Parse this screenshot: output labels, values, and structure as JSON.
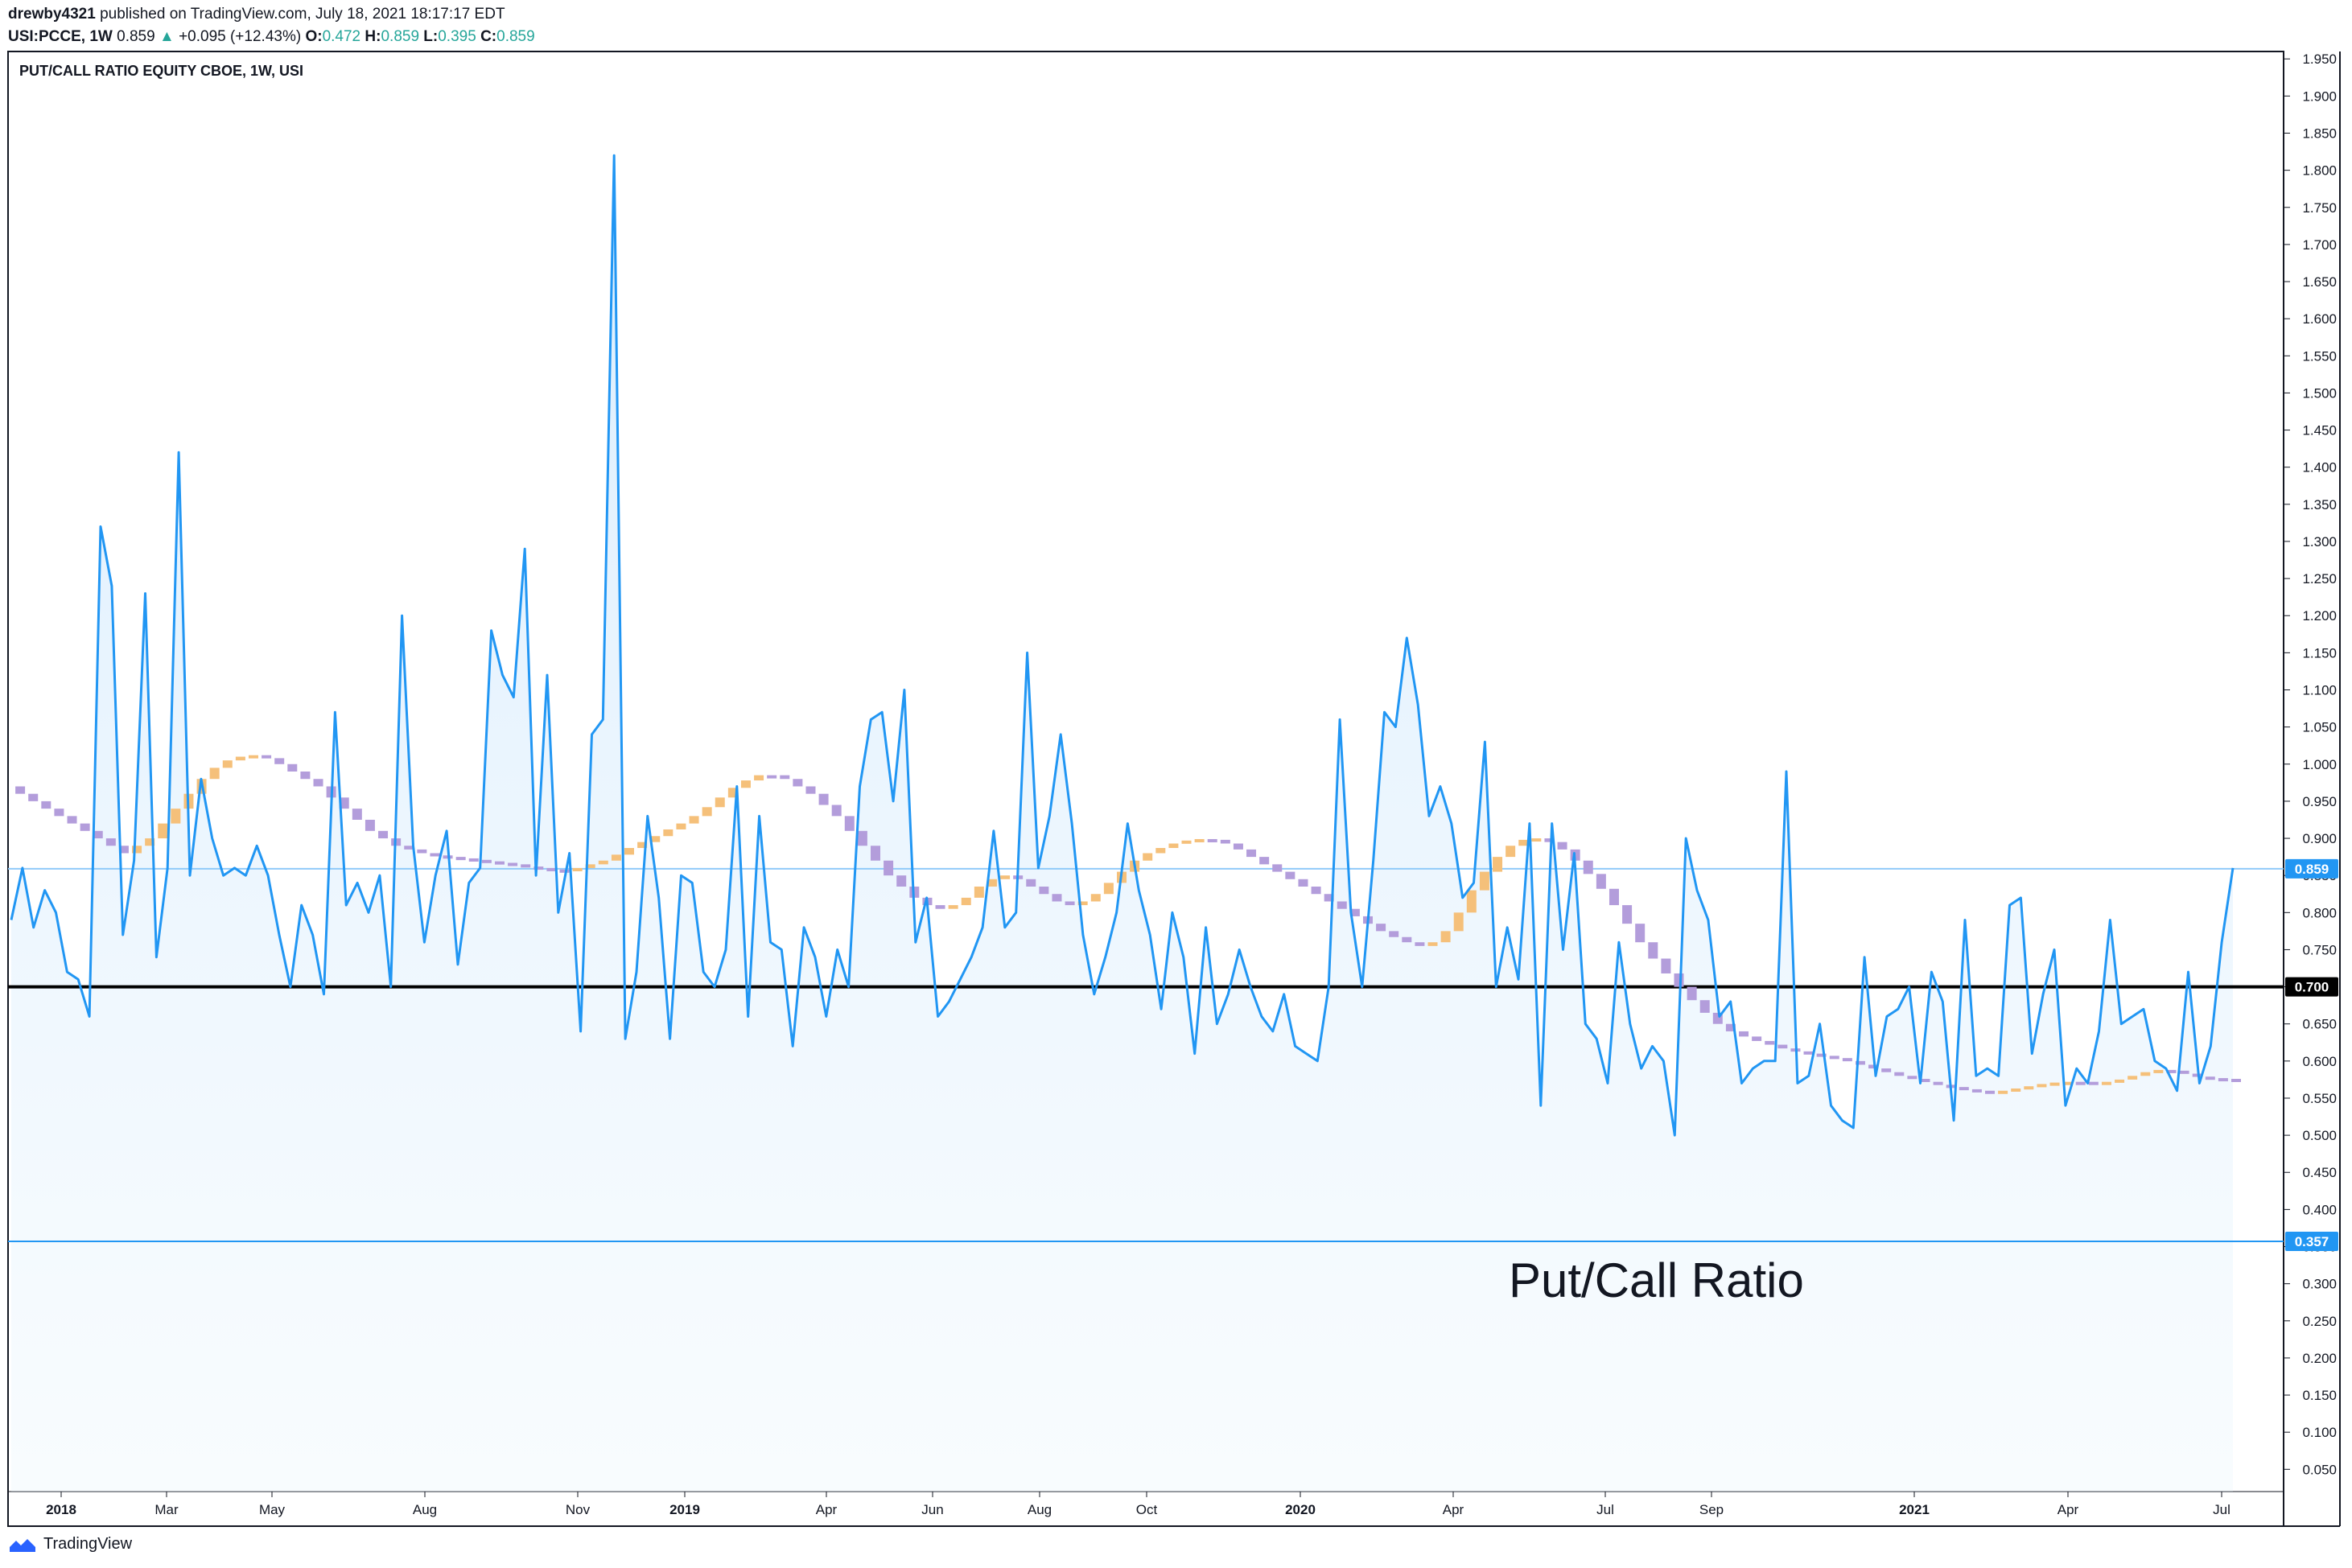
{
  "header": {
    "author": "drewby4321",
    "published": "published on TradingView.com, July 18, 2021 18:17:17 EDT",
    "symbol": "USI:PCCE, 1W",
    "last": "0.859",
    "change": "+0.095 (+12.43%)",
    "o_label": "O:",
    "o_val": "0.472",
    "h_label": "H:",
    "h_val": "0.859",
    "l_label": "L:",
    "l_val": "0.395",
    "c_label": "C:",
    "c_val": "0.859"
  },
  "footer": {
    "brand": "TradingView",
    "icon": "tradingview-logo-icon"
  },
  "colors": {
    "line": "#2196f3",
    "fill": "#e3f2fd",
    "ma_up": "#f5c07a",
    "ma_down": "#b39ddb",
    "hline": "#000000",
    "level_357": "#2196f3"
  },
  "chart_data": {
    "type": "line",
    "title": "PUT/CALL RATIO EQUITY CBOE, 1W, USI",
    "annotation": "Put/Call Ratio",
    "ylim": [
      0.02,
      1.96
    ],
    "yticks": [
      "1.950",
      "1.900",
      "1.850",
      "1.800",
      "1.750",
      "1.700",
      "1.650",
      "1.600",
      "1.550",
      "1.500",
      "1.450",
      "1.400",
      "1.350",
      "1.300",
      "1.250",
      "1.200",
      "1.150",
      "1.100",
      "1.050",
      "1.000",
      "0.950",
      "0.900",
      "0.850",
      "0.800",
      "0.750",
      "0.700",
      "0.650",
      "0.600",
      "0.550",
      "0.500",
      "0.450",
      "0.400",
      "0.350",
      "0.300",
      "0.250",
      "0.200",
      "0.150",
      "0.100",
      "0.050"
    ],
    "xlabels": [
      "2018",
      "Mar",
      "May",
      "Aug",
      "Nov",
      "2019",
      "Apr",
      "Jun",
      "Aug",
      "Oct",
      "2020",
      "Apr",
      "Jul",
      "Sep",
      "2021",
      "Apr",
      "Jul"
    ],
    "bold_xlabels": [
      "2018",
      "2019",
      "2020",
      "2021"
    ],
    "price_labels": [
      {
        "value": 0.859,
        "text": "0.859",
        "style": "current"
      },
      {
        "value": 0.7,
        "text": "0.700",
        "style": "black"
      },
      {
        "value": 0.357,
        "text": "0.357",
        "style": "blue"
      }
    ],
    "horizontal_lines": [
      {
        "value": 0.7,
        "color": "#000000"
      },
      {
        "value": 0.357,
        "color": "#2196f3"
      },
      {
        "value": 0.859,
        "color": "#90caf9"
      }
    ],
    "series": [
      {
        "values": [
          0.79,
          0.86,
          0.78,
          0.83,
          0.8,
          0.72,
          0.71,
          0.66,
          1.32,
          1.24,
          0.77,
          0.87,
          1.23,
          0.74,
          0.86,
          1.42,
          0.85,
          0.98,
          0.9,
          0.85,
          0.86,
          0.85,
          0.89,
          0.85,
          0.77,
          0.7,
          0.81,
          0.77,
          0.69,
          1.07,
          0.81,
          0.84,
          0.8,
          0.85,
          0.7,
          1.2,
          0.89,
          0.76,
          0.85,
          0.91,
          0.73,
          0.84,
          0.86,
          1.18,
          1.12,
          1.09,
          1.29,
          0.85,
          1.12,
          0.8,
          0.88,
          0.64,
          1.04,
          1.06,
          1.82,
          0.63,
          0.72,
          0.93,
          0.82,
          0.63,
          0.85,
          0.84,
          0.72,
          0.7,
          0.75,
          0.97,
          0.66,
          0.93,
          0.76,
          0.75,
          0.62,
          0.78,
          0.74,
          0.66,
          0.75,
          0.7,
          0.97,
          1.06,
          1.07,
          0.95,
          1.1,
          0.76,
          0.82,
          0.66,
          0.68,
          0.71,
          0.74,
          0.78,
          0.91,
          0.78,
          0.8,
          1.15,
          0.86,
          0.93,
          1.04,
          0.92,
          0.77,
          0.69,
          0.74,
          0.8,
          0.92,
          0.83,
          0.77,
          0.67,
          0.8,
          0.74,
          0.61,
          0.78,
          0.65,
          0.69,
          0.75,
          0.7,
          0.66,
          0.64,
          0.69,
          0.62,
          0.61,
          0.6,
          0.7,
          1.06,
          0.8,
          0.7,
          0.87,
          1.07,
          1.05,
          1.17,
          1.08,
          0.93,
          0.97,
          0.92,
          0.82,
          0.84,
          1.03,
          0.7,
          0.78,
          0.71,
          0.92,
          0.54,
          0.92,
          0.75,
          0.88,
          0.65,
          0.63,
          0.57,
          0.76,
          0.65,
          0.59,
          0.62,
          0.6,
          0.5,
          0.9,
          0.83,
          0.79,
          0.66,
          0.68,
          0.57,
          0.59,
          0.6,
          0.6,
          0.99,
          0.57,
          0.58,
          0.65,
          0.54,
          0.52,
          0.51,
          0.74,
          0.58,
          0.66,
          0.67,
          0.7,
          0.57,
          0.72,
          0.68,
          0.52,
          0.79,
          0.58,
          0.59,
          0.58,
          0.81,
          0.82,
          0.61,
          0.69,
          0.75,
          0.54,
          0.59,
          0.57,
          0.64,
          0.79,
          0.65,
          0.66,
          0.67,
          0.6,
          0.59,
          0.56,
          0.72,
          0.57,
          0.62,
          0.76,
          0.86
        ]
      },
      {
        "name": "",
        "values": [
          0.97,
          0.96,
          0.95,
          0.94,
          0.93,
          0.92,
          0.91,
          0.9,
          0.89,
          0.88,
          0.89,
          0.9,
          0.92,
          0.94,
          0.96,
          0.98,
          0.995,
          1.005,
          1.01,
          1.012,
          1.008,
          1.0,
          0.99,
          0.98,
          0.97,
          0.955,
          0.94,
          0.925,
          0.91,
          0.9,
          0.89,
          0.885,
          0.88,
          0.877,
          0.875,
          0.873,
          0.871,
          0.869,
          0.867,
          0.865,
          0.862,
          0.86,
          0.858,
          0.858,
          0.86,
          0.865,
          0.87,
          0.878,
          0.887,
          0.895,
          0.903,
          0.912,
          0.92,
          0.93,
          0.942,
          0.955,
          0.968,
          0.978,
          0.985,
          0.985,
          0.98,
          0.97,
          0.96,
          0.945,
          0.93,
          0.91,
          0.89,
          0.87,
          0.85,
          0.835,
          0.82,
          0.81,
          0.805,
          0.81,
          0.82,
          0.835,
          0.845,
          0.85,
          0.845,
          0.835,
          0.825,
          0.815,
          0.81,
          0.815,
          0.825,
          0.84,
          0.855,
          0.87,
          0.88,
          0.887,
          0.893,
          0.897,
          0.899,
          0.898,
          0.893,
          0.885,
          0.875,
          0.865,
          0.855,
          0.845,
          0.835,
          0.825,
          0.815,
          0.805,
          0.795,
          0.785,
          0.775,
          0.767,
          0.76,
          0.755,
          0.76,
          0.775,
          0.8,
          0.83,
          0.855,
          0.875,
          0.89,
          0.898,
          0.9,
          0.895,
          0.885,
          0.87,
          0.852,
          0.832,
          0.81,
          0.785,
          0.76,
          0.738,
          0.718,
          0.7,
          0.682,
          0.665,
          0.65,
          0.64,
          0.633,
          0.627,
          0.622,
          0.617,
          0.613,
          0.61,
          0.607,
          0.604,
          0.6,
          0.595,
          0.59,
          0.585,
          0.58,
          0.576,
          0.572,
          0.568,
          0.565,
          0.562,
          0.56,
          0.559,
          0.56,
          0.563,
          0.566,
          0.569,
          0.571,
          0.572,
          0.572,
          0.571,
          0.572,
          0.575,
          0.58,
          0.585,
          0.588,
          0.587,
          0.583,
          0.579,
          0.577,
          0.576,
          0.575
        ]
      }
    ]
  }
}
